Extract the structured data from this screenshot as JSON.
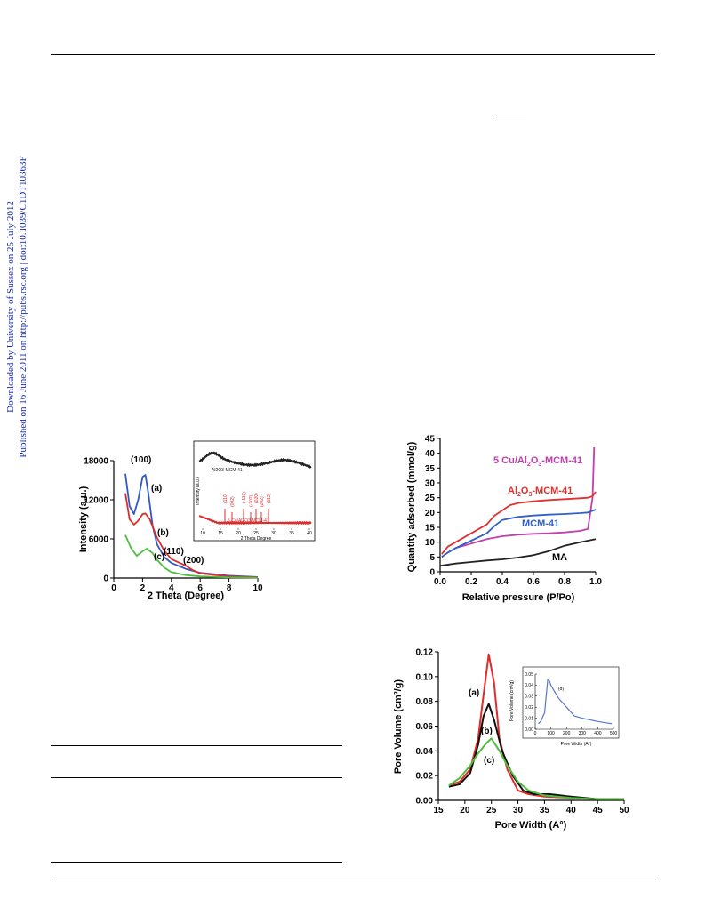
{
  "side_note": {
    "line1": "Downloaded by University of Sussex on 25 July 2012",
    "line2": "Published on 16 June 2011 on http://pubs.rsc.org | doi:10.1039/C1DT10363F"
  },
  "figures": {
    "xrd": {
      "chart_data": {
        "type": "line",
        "xlabel": "2 Theta (Degree)",
        "ylabel": "Intensity (a.u.)",
        "xlim": [
          0,
          10
        ],
        "ylim": [
          0,
          18000
        ],
        "x_ticks": [
          "0",
          "2",
          "4",
          "6",
          "8",
          "10"
        ],
        "y_ticks": [
          "0",
          "6000",
          "12000",
          "18000"
        ],
        "series": [
          {
            "name": "(a)",
            "color": "#2f58c8",
            "x": [
              0.8,
              1.1,
              1.4,
              1.7,
              2.0,
              2.2,
              2.4,
              2.7,
              3.0,
              3.5,
              4.0,
              5.0,
              6.0,
              8.0,
              10.0
            ],
            "y": [
              16000,
              11000,
              9800,
              12000,
              15500,
              15800,
              13000,
              8000,
              5200,
              3200,
              2300,
              1400,
              800,
              350,
              150
            ]
          },
          {
            "name": "(b)",
            "color": "#e02b2b",
            "x": [
              0.8,
              1.1,
              1.4,
              1.7,
              2.0,
              2.2,
              2.5,
              3.0,
              3.5,
              4.0,
              4.5,
              5.0,
              5.5,
              6.0,
              8.0,
              10.0
            ],
            "y": [
              13000,
              9000,
              8200,
              8800,
              9800,
              9900,
              9000,
              6200,
              4200,
              2900,
              2400,
              1900,
              1200,
              700,
              250,
              100
            ]
          },
          {
            "name": "(c)",
            "color": "#4fbd3f",
            "x": [
              0.8,
              1.2,
              1.6,
              2.0,
              2.3,
              2.7,
              3.0,
              3.5,
              4.0,
              5.0,
              6.0,
              8.0,
              10.0
            ],
            "y": [
              6600,
              4600,
              3400,
              4100,
              4500,
              3800,
              2800,
              1600,
              900,
              450,
              250,
              100,
              50
            ]
          }
        ],
        "annotations": [
          "(100)",
          "(a)",
          "(b)",
          "(110)",
          "(200)",
          "(c)"
        ],
        "inset": {
          "xlabel": "2 Theta Degree",
          "ylabel": "Intensity (a.u.)",
          "x_ticks": [
            "10",
            "15",
            "20",
            "25",
            "30",
            "35",
            "40"
          ],
          "series_labels": [
            "Al2O3-MCM-41",
            "5 Cu/Al2O3-MCM-41"
          ],
          "peak_labels": [
            "(110)",
            "(002)",
            "(-113)",
            "(-202)",
            "(020)",
            "(202)",
            "(113)"
          ]
        }
      }
    },
    "isotherm": {
      "chart_data": {
        "type": "line",
        "xlabel": "Relative pressure (P/Po)",
        "ylabel": "Quantity adsorbed (mmol/g)",
        "xlim": [
          0,
          1.0
        ],
        "ylim": [
          0,
          45
        ],
        "x_ticks": [
          "0.0",
          "0.2",
          "0.4",
          "0.6",
          "0.8",
          "1.0"
        ],
        "y_ticks": [
          "0",
          "5",
          "10",
          "15",
          "20",
          "25",
          "30",
          "35",
          "40",
          "45"
        ],
        "series": [
          {
            "name": "5 Cu/Al2O3-MCM-41",
            "color": "#c23fae",
            "x": [
              0.01,
              0.05,
              0.1,
              0.2,
              0.3,
              0.4,
              0.5,
              0.6,
              0.7,
              0.8,
              0.9,
              0.95,
              0.98,
              0.99
            ],
            "y": [
              5,
              6.5,
              8,
              9.5,
              11,
              12,
              12.5,
              12.8,
              13,
              13.3,
              13.8,
              14.5,
              25,
              42
            ]
          },
          {
            "name": "Al2O3-MCM-41",
            "color": "#e03030",
            "x": [
              0.01,
              0.05,
              0.1,
              0.2,
              0.3,
              0.35,
              0.45,
              0.5,
              0.6,
              0.7,
              0.8,
              0.9,
              0.95,
              0.98,
              1.0
            ],
            "y": [
              6,
              8.5,
              10,
              13,
              16,
              19,
              22.5,
              23.2,
              23.8,
              24.2,
              24.5,
              24.8,
              25,
              25.5,
              27
            ]
          },
          {
            "name": "MCM-41",
            "color": "#3060c8",
            "x": [
              0.01,
              0.05,
              0.1,
              0.2,
              0.3,
              0.35,
              0.4,
              0.5,
              0.6,
              0.7,
              0.8,
              0.9,
              0.95,
              1.0
            ],
            "y": [
              5,
              6.5,
              8,
              10.5,
              13,
              15.5,
              17.5,
              18.5,
              19,
              19.3,
              19.5,
              19.8,
              20,
              21
            ]
          },
          {
            "name": "MA",
            "color": "#222222",
            "x": [
              0.0,
              0.1,
              0.2,
              0.3,
              0.4,
              0.5,
              0.6,
              0.7,
              0.8,
              0.9,
              1.0
            ],
            "y": [
              2,
              2.8,
              3.3,
              3.8,
              4.2,
              4.8,
              5.6,
              7,
              8.8,
              10,
              11
            ]
          }
        ]
      }
    },
    "pore": {
      "chart_data": {
        "type": "line",
        "xlabel": "Pore Width (A°)",
        "ylabel": "Pore Volume (cm³/g)",
        "xlim": [
          15,
          50
        ],
        "ylim": [
          0,
          0.12
        ],
        "x_ticks": [
          "15",
          "20",
          "25",
          "30",
          "35",
          "40",
          "45",
          "50"
        ],
        "y_ticks": [
          "0.00",
          "0.02",
          "0.04",
          "0.06",
          "0.08",
          "0.10",
          "0.12"
        ],
        "series": [
          {
            "name": "(a)",
            "color": "#e02b2b",
            "x": [
              17,
              19,
              21,
              22.5,
              23.5,
              24.5,
              25.5,
              26.5,
              28,
              30,
              32,
              35,
              40,
              45,
              50
            ],
            "y": [
              0.012,
              0.015,
              0.025,
              0.05,
              0.085,
              0.118,
              0.095,
              0.05,
              0.025,
              0.008,
              0.005,
              0.003,
              0.002,
              0.001,
              0.001
            ]
          },
          {
            "name": "(b)",
            "color": "#111111",
            "x": [
              17,
              19,
              21,
              22.5,
              23.5,
              24.5,
              25.5,
              27,
              29,
              31,
              33,
              36,
              40,
              45,
              50
            ],
            "y": [
              0.011,
              0.013,
              0.022,
              0.045,
              0.068,
              0.078,
              0.065,
              0.04,
              0.02,
              0.008,
              0.005,
              0.005,
              0.003,
              0.001,
              0.001
            ]
          },
          {
            "name": "(c)",
            "color": "#4fbd3f",
            "x": [
              17,
              19,
              21,
              22.5,
              24,
              25,
              26.5,
              28,
              30,
              32,
              35,
              40,
              45,
              50
            ],
            "y": [
              0.012,
              0.018,
              0.028,
              0.038,
              0.046,
              0.05,
              0.04,
              0.028,
              0.015,
              0.008,
              0.004,
              0.002,
              0.001,
              0.001
            ]
          }
        ],
        "inset": {
          "xlabel": "Pore Width (A°)",
          "ylabel": "Pore Volume (cm³/g)",
          "label": "(d)",
          "color": "#5577cc",
          "x_ticks": [
            "0",
            "100",
            "200",
            "300",
            "400",
            "500"
          ],
          "y_ticks": [
            "0.00",
            "0.01",
            "0.02",
            "0.03",
            "0.04",
            "0.05"
          ],
          "x": [
            20,
            40,
            50,
            60,
            70,
            80,
            90,
            100,
            120,
            150,
            200,
            250,
            300,
            400,
            490
          ],
          "y": [
            0.005,
            0.008,
            0.012,
            0.015,
            0.03,
            0.045,
            0.044,
            0.04,
            0.035,
            0.028,
            0.02,
            0.012,
            0.01,
            0.007,
            0.005
          ]
        }
      }
    }
  }
}
